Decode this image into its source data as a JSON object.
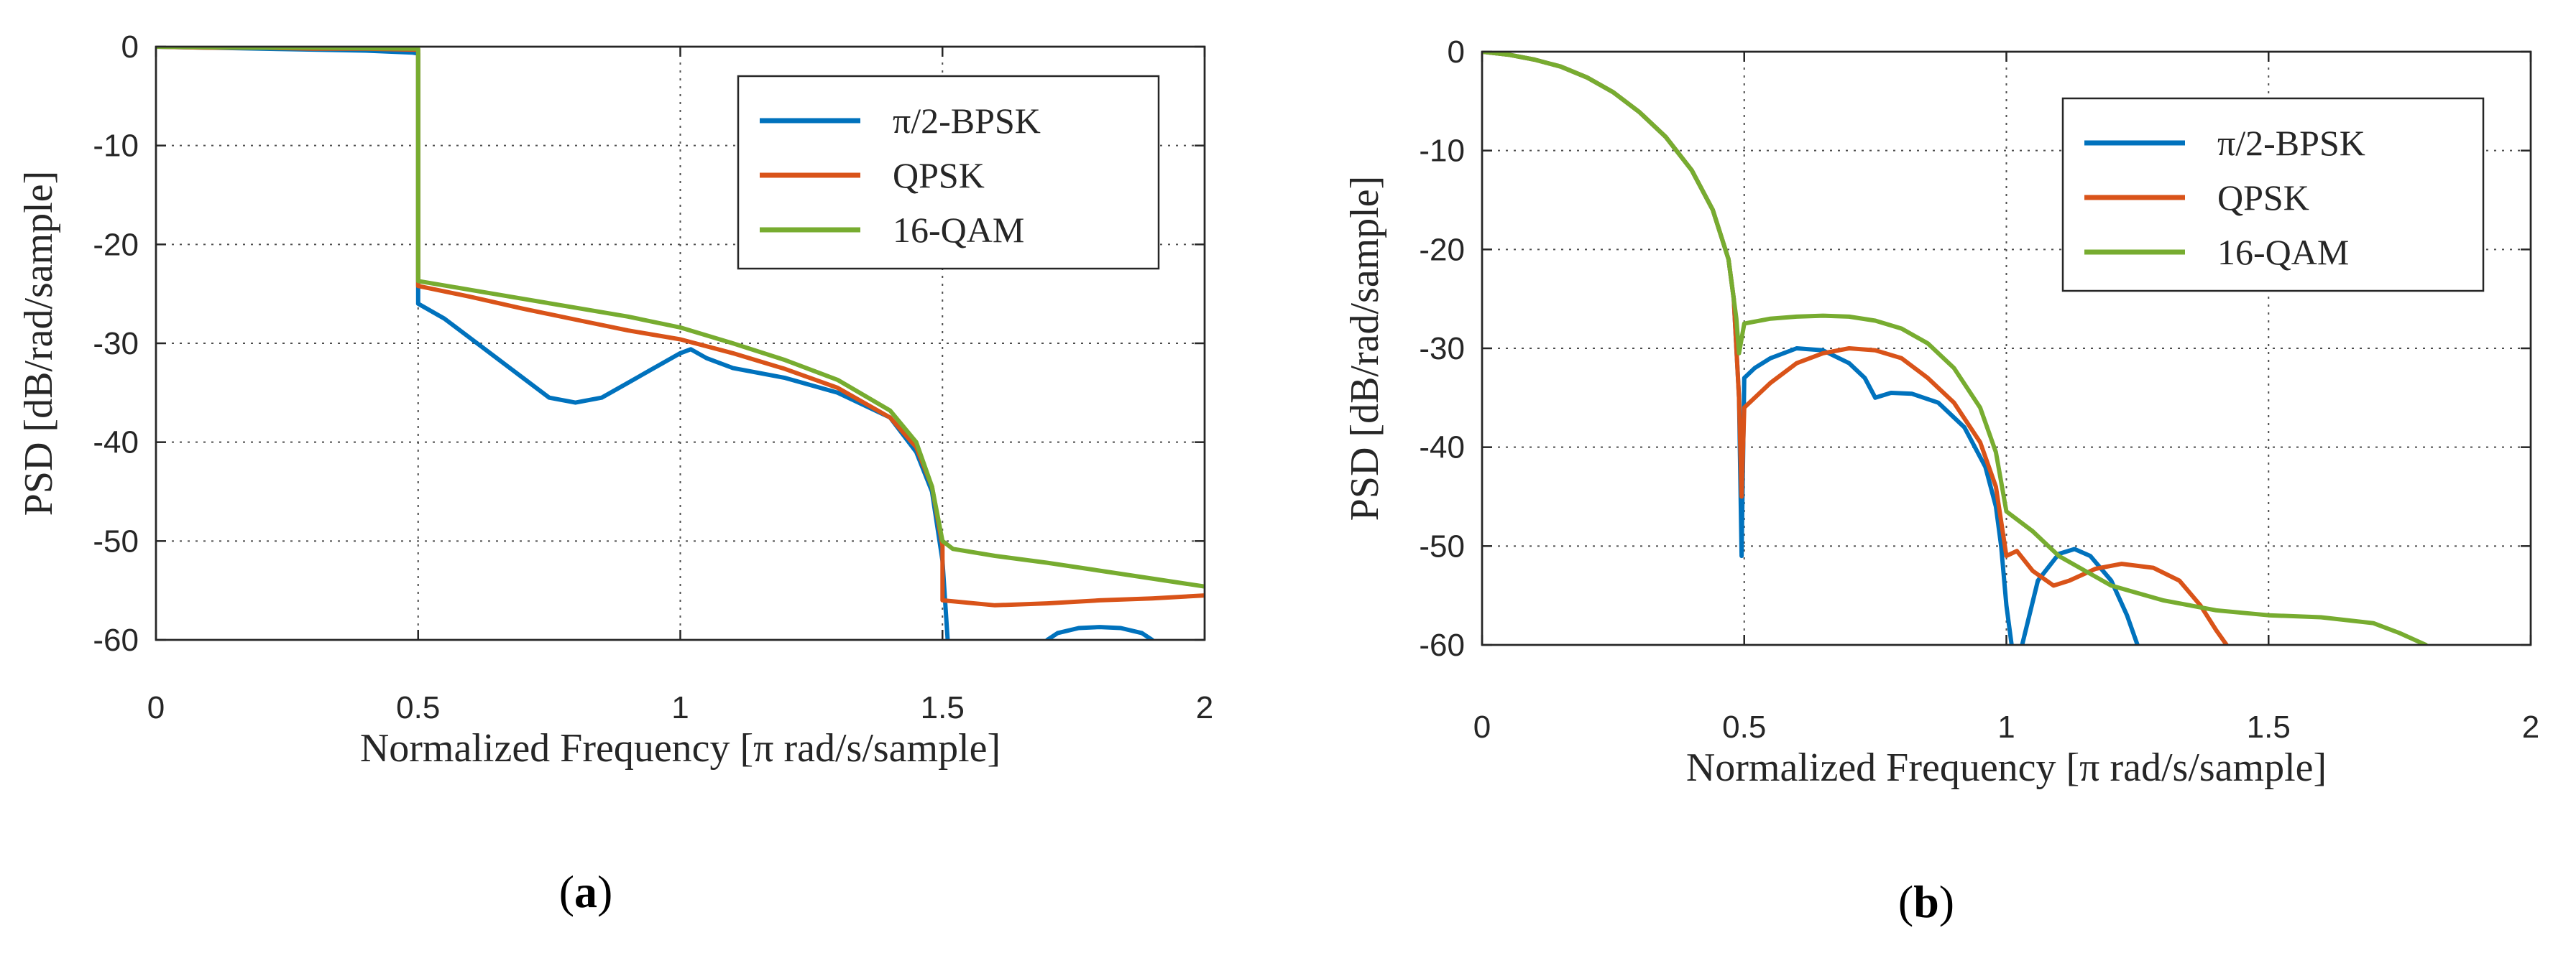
{
  "colors": {
    "blue": "#0072BD",
    "orange": "#D95319",
    "green": "#77AC30"
  },
  "chart_data": [
    {
      "type": "line",
      "panel_label": "a",
      "xlabel": "Normalized Frequency [π rad/s/sample]",
      "ylabel": "PSD [dB/rad/sample]",
      "xlim": [
        0,
        2
      ],
      "ylim": [
        -60,
        0
      ],
      "xticks": [
        0,
        0.5,
        1,
        1.5,
        2
      ],
      "xtick_labels": [
        "0",
        "0.5",
        "1",
        "1.5",
        "2"
      ],
      "yticks": [
        0,
        -10,
        -20,
        -30,
        -40,
        -50,
        -60
      ],
      "ytick_labels": [
        "0",
        "-10",
        "-20",
        "-30",
        "-40",
        "-50",
        "-60"
      ],
      "grid": true,
      "legend_position": "top-right",
      "series": [
        {
          "name": "π/2-BPSK",
          "color": "blue",
          "segments": [
            [
              [
                0,
                0
              ],
              [
                0.1,
                -0.1
              ],
              [
                0.2,
                -0.2
              ],
              [
                0.3,
                -0.3
              ],
              [
                0.4,
                -0.4
              ],
              [
                0.49,
                -0.6
              ],
              [
                0.5,
                -0.7
              ],
              [
                0.5,
                -26
              ],
              [
                0.55,
                -27.5
              ],
              [
                0.6,
                -29.5
              ],
              [
                0.65,
                -31.5
              ],
              [
                0.7,
                -33.5
              ],
              [
                0.75,
                -35.5
              ],
              [
                0.8,
                -36
              ],
              [
                0.85,
                -35.5
              ],
              [
                0.9,
                -34
              ],
              [
                0.95,
                -32.5
              ],
              [
                1.0,
                -31
              ],
              [
                1.02,
                -30.6
              ],
              [
                1.05,
                -31.5
              ],
              [
                1.1,
                -32.5
              ],
              [
                1.2,
                -33.5
              ],
              [
                1.3,
                -35
              ],
              [
                1.4,
                -37.5
              ],
              [
                1.45,
                -41
              ],
              [
                1.48,
                -45
              ],
              [
                1.5,
                -52
              ],
              [
                1.51,
                -60
              ]
            ],
            [
              [
                1.7,
                -60
              ],
              [
                1.72,
                -59.3
              ],
              [
                1.76,
                -58.8
              ],
              [
                1.8,
                -58.7
              ],
              [
                1.84,
                -58.8
              ],
              [
                1.88,
                -59.3
              ],
              [
                1.9,
                -60
              ]
            ]
          ]
        },
        {
          "name": "QPSK",
          "color": "orange",
          "segments": [
            [
              [
                0,
                0
              ],
              [
                0.1,
                -0.1
              ],
              [
                0.2,
                -0.1
              ],
              [
                0.3,
                -0.2
              ],
              [
                0.4,
                -0.2
              ],
              [
                0.49,
                -0.3
              ],
              [
                0.5,
                -0.3
              ],
              [
                0.5,
                -24.2
              ],
              [
                0.6,
                -25.3
              ],
              [
                0.7,
                -26.5
              ],
              [
                0.8,
                -27.6
              ],
              [
                0.9,
                -28.7
              ],
              [
                1.0,
                -29.6
              ],
              [
                1.1,
                -31
              ],
              [
                1.2,
                -32.6
              ],
              [
                1.3,
                -34.5
              ],
              [
                1.4,
                -37.5
              ],
              [
                1.45,
                -40.5
              ],
              [
                1.48,
                -44.5
              ],
              [
                1.5,
                -50.5
              ],
              [
                1.5,
                -56
              ],
              [
                1.6,
                -56.5
              ],
              [
                1.7,
                -56.3
              ],
              [
                1.8,
                -56
              ],
              [
                1.9,
                -55.8
              ],
              [
                2.0,
                -55.5
              ]
            ]
          ]
        },
        {
          "name": "16-QAM",
          "color": "green",
          "segments": [
            [
              [
                0,
                0
              ],
              [
                0.1,
                -0.05
              ],
              [
                0.2,
                -0.1
              ],
              [
                0.3,
                -0.1
              ],
              [
                0.4,
                -0.15
              ],
              [
                0.49,
                -0.2
              ],
              [
                0.5,
                -0.2
              ],
              [
                0.5,
                -23.7
              ],
              [
                0.6,
                -24.6
              ],
              [
                0.7,
                -25.5
              ],
              [
                0.8,
                -26.4
              ],
              [
                0.9,
                -27.3
              ],
              [
                1.0,
                -28.4
              ],
              [
                1.1,
                -30
              ],
              [
                1.2,
                -31.7
              ],
              [
                1.3,
                -33.7
              ],
              [
                1.4,
                -36.8
              ],
              [
                1.45,
                -40
              ],
              [
                1.48,
                -44.5
              ],
              [
                1.5,
                -50
              ],
              [
                1.52,
                -50.8
              ],
              [
                1.6,
                -51.5
              ],
              [
                1.7,
                -52.2
              ],
              [
                1.8,
                -53
              ],
              [
                1.9,
                -53.8
              ],
              [
                2.0,
                -54.6
              ]
            ]
          ]
        }
      ]
    },
    {
      "type": "line",
      "panel_label": "b",
      "xlabel": "Normalized Frequency [π rad/s/sample]",
      "ylabel": "PSD [dB/rad/sample]",
      "xlim": [
        0,
        2
      ],
      "ylim": [
        -60,
        0
      ],
      "xticks": [
        0,
        0.5,
        1,
        1.5,
        2
      ],
      "xtick_labels": [
        "0",
        "0.5",
        "1",
        "1.5",
        "2"
      ],
      "yticks": [
        0,
        -10,
        -20,
        -30,
        -40,
        -50,
        -60
      ],
      "ytick_labels": [
        "0",
        "-10",
        "-20",
        "-30",
        "-40",
        "-50",
        "-60"
      ],
      "grid": true,
      "legend_position": "top-right",
      "series": [
        {
          "name": "π/2-BPSK",
          "color": "blue",
          "segments": [
            [
              [
                0,
                0
              ],
              [
                0.05,
                -0.3
              ],
              [
                0.1,
                -0.8
              ],
              [
                0.15,
                -1.5
              ],
              [
                0.2,
                -2.6
              ],
              [
                0.25,
                -4.1
              ],
              [
                0.3,
                -6.1
              ],
              [
                0.35,
                -8.6
              ],
              [
                0.4,
                -12
              ],
              [
                0.44,
                -16
              ],
              [
                0.47,
                -21
              ],
              [
                0.48,
                -25
              ],
              [
                0.49,
                -35
              ],
              [
                0.495,
                -51
              ],
              [
                0.5,
                -33
              ],
              [
                0.52,
                -32
              ],
              [
                0.55,
                -31
              ],
              [
                0.6,
                -30
              ],
              [
                0.65,
                -30.2
              ],
              [
                0.7,
                -31.5
              ],
              [
                0.73,
                -33
              ],
              [
                0.75,
                -35
              ],
              [
                0.78,
                -34.5
              ],
              [
                0.82,
                -34.6
              ],
              [
                0.87,
                -35.5
              ],
              [
                0.92,
                -38
              ],
              [
                0.96,
                -42
              ],
              [
                0.98,
                -46
              ],
              [
                0.99,
                -50
              ],
              [
                1.0,
                -56
              ],
              [
                1.01,
                -60
              ]
            ],
            [
              [
                1.03,
                -60
              ],
              [
                1.06,
                -53.5
              ],
              [
                1.1,
                -50.8
              ],
              [
                1.13,
                -50.3
              ],
              [
                1.16,
                -51
              ],
              [
                1.2,
                -53.5
              ],
              [
                1.23,
                -57
              ],
              [
                1.25,
                -60
              ]
            ]
          ]
        },
        {
          "name": "QPSK",
          "color": "orange",
          "segments": [
            [
              [
                0,
                0
              ],
              [
                0.05,
                -0.3
              ],
              [
                0.1,
                -0.8
              ],
              [
                0.15,
                -1.5
              ],
              [
                0.2,
                -2.6
              ],
              [
                0.25,
                -4.1
              ],
              [
                0.3,
                -6.1
              ],
              [
                0.35,
                -8.6
              ],
              [
                0.4,
                -12
              ],
              [
                0.44,
                -16
              ],
              [
                0.47,
                -21
              ],
              [
                0.48,
                -25
              ],
              [
                0.49,
                -35
              ],
              [
                0.495,
                -45
              ],
              [
                0.5,
                -36
              ],
              [
                0.55,
                -33.5
              ],
              [
                0.6,
                -31.5
              ],
              [
                0.65,
                -30.5
              ],
              [
                0.7,
                -30
              ],
              [
                0.75,
                -30.2
              ],
              [
                0.8,
                -31
              ],
              [
                0.85,
                -33
              ],
              [
                0.9,
                -35.5
              ],
              [
                0.95,
                -39.5
              ],
              [
                0.98,
                -44
              ],
              [
                1.0,
                -51
              ],
              [
                1.02,
                -50.5
              ],
              [
                1.05,
                -52.5
              ],
              [
                1.09,
                -54
              ],
              [
                1.12,
                -53.5
              ],
              [
                1.17,
                -52.3
              ],
              [
                1.22,
                -51.8
              ],
              [
                1.28,
                -52.2
              ],
              [
                1.33,
                -53.5
              ],
              [
                1.37,
                -56
              ],
              [
                1.4,
                -58.5
              ],
              [
                1.42,
                -60
              ]
            ]
          ]
        },
        {
          "name": "16-QAM",
          "color": "green",
          "segments": [
            [
              [
                0,
                0
              ],
              [
                0.05,
                -0.3
              ],
              [
                0.1,
                -0.8
              ],
              [
                0.15,
                -1.5
              ],
              [
                0.2,
                -2.6
              ],
              [
                0.25,
                -4.1
              ],
              [
                0.3,
                -6.1
              ],
              [
                0.35,
                -8.6
              ],
              [
                0.4,
                -12
              ],
              [
                0.44,
                -16
              ],
              [
                0.47,
                -21
              ],
              [
                0.485,
                -27
              ],
              [
                0.49,
                -30.5
              ],
              [
                0.5,
                -27.5
              ],
              [
                0.55,
                -27
              ],
              [
                0.6,
                -26.8
              ],
              [
                0.65,
                -26.7
              ],
              [
                0.7,
                -26.8
              ],
              [
                0.75,
                -27.2
              ],
              [
                0.8,
                -28
              ],
              [
                0.85,
                -29.5
              ],
              [
                0.9,
                -32
              ],
              [
                0.95,
                -36
              ],
              [
                0.98,
                -40.5
              ],
              [
                1.0,
                -46.5
              ],
              [
                1.05,
                -48.5
              ],
              [
                1.1,
                -51
              ],
              [
                1.15,
                -52.5
              ],
              [
                1.2,
                -54
              ],
              [
                1.3,
                -55.5
              ],
              [
                1.4,
                -56.5
              ],
              [
                1.5,
                -57
              ],
              [
                1.6,
                -57.2
              ],
              [
                1.7,
                -57.8
              ],
              [
                1.75,
                -58.8
              ],
              [
                1.8,
                -60
              ]
            ]
          ]
        }
      ]
    }
  ]
}
